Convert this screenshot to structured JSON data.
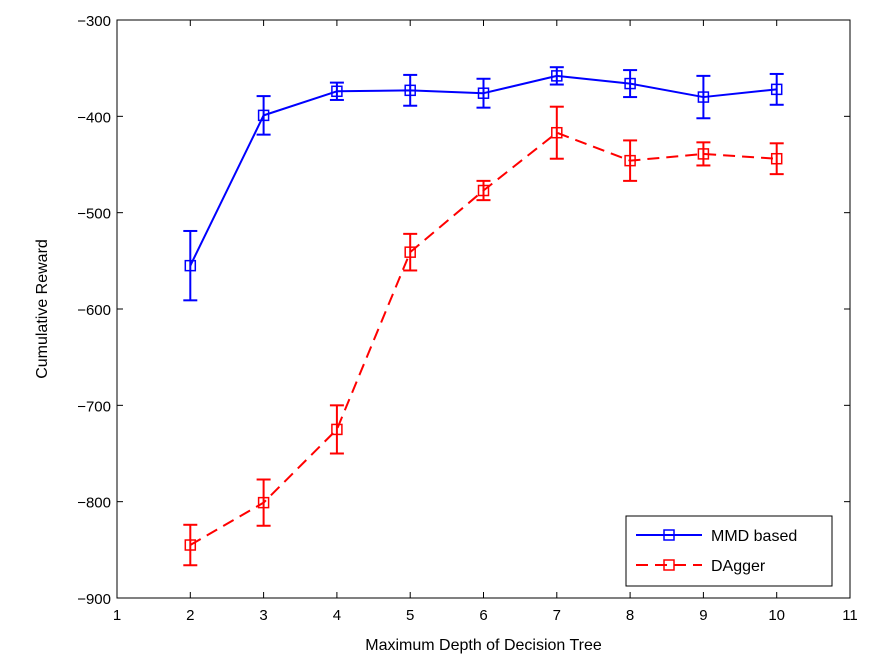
{
  "chart_data": {
    "type": "line",
    "xlabel": "Maximum Depth of Decision Tree",
    "ylabel": "Cumulative Reward",
    "xlim": [
      1,
      11
    ],
    "ylim": [
      -900,
      -300
    ],
    "xticks": [
      1,
      2,
      3,
      4,
      5,
      6,
      7,
      8,
      9,
      10,
      11
    ],
    "yticks": [
      -900,
      -800,
      -700,
      -600,
      -500,
      -400,
      -300
    ],
    "xtick_labels": [
      "1",
      "2",
      "3",
      "4",
      "5",
      "6",
      "7",
      "8",
      "9",
      "10",
      "11"
    ],
    "ytick_labels": [
      "−900",
      "−800",
      "−700",
      "−600",
      "−500",
      "−400",
      "−300"
    ],
    "grid": false,
    "legend_position": "bottom-right",
    "x": [
      2,
      3,
      4,
      5,
      6,
      7,
      8,
      9,
      10
    ],
    "series": [
      {
        "name": "MMD based",
        "color": "#0000ff",
        "line_style": "solid",
        "marker": "square",
        "values": [
          -555,
          -399,
          -374,
          -373,
          -376,
          -358,
          -366,
          -380,
          -372
        ],
        "error": [
          36,
          20,
          9,
          16,
          15,
          9,
          14,
          22,
          16
        ]
      },
      {
        "name": "DAgger",
        "color": "#ff0000",
        "line_style": "dashed",
        "marker": "square",
        "values": [
          -845,
          -801,
          -725,
          -541,
          -477,
          -417,
          -446,
          -439,
          -444
        ],
        "error": [
          21,
          24,
          25,
          19,
          10,
          27,
          21,
          12,
          16
        ]
      }
    ]
  }
}
